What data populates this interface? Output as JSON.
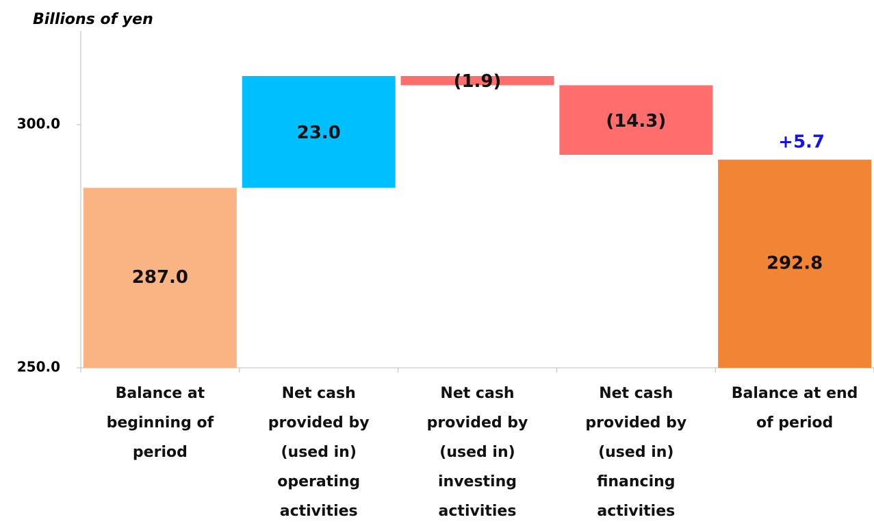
{
  "chart_data": {
    "type": "waterfall",
    "y_axis_label": "Billions of yen",
    "categories": [
      "Balance at beginning of period",
      "Net cash provided by (used in) operating activities",
      "Net cash provided by (used in) investing activities",
      "Net cash provided by (used in) financing activities",
      "Balance at end of period"
    ],
    "values": [
      287.0,
      23.0,
      -1.9,
      -14.3,
      292.8
    ],
    "value_labels": [
      "287.0",
      "23.0",
      "(1.9)",
      "(14.3)",
      "292.8"
    ],
    "colors": [
      "#fab383",
      "#00bfff",
      "#ff6d6d",
      "#ff6d6d",
      "#f28535"
    ],
    "annotation": "+5.7",
    "annotation_color": "#1414e6",
    "ylim": [
      250,
      320
    ],
    "yticks": [
      {
        "value": 250,
        "label": "250.0"
      },
      {
        "value": 300,
        "label": "300.0"
      }
    ]
  }
}
